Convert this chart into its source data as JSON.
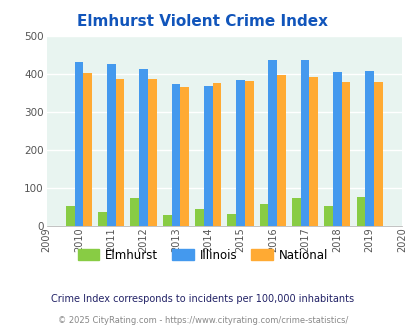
{
  "title": "Elmhurst Violent Crime Index",
  "years": [
    2010,
    2011,
    2012,
    2013,
    2014,
    2015,
    2016,
    2017,
    2018,
    2019
  ],
  "elmhurst": [
    52,
    37,
    73,
    29,
    46,
    33,
    58,
    75,
    53,
    76
  ],
  "illinois": [
    433,
    428,
    415,
    373,
    370,
    384,
    438,
    438,
    405,
    408
  ],
  "national": [
    404,
    387,
    387,
    367,
    376,
    383,
    397,
    394,
    380,
    379
  ],
  "bar_colors": {
    "elmhurst": "#88cc44",
    "illinois": "#4499ee",
    "national": "#ffaa33"
  },
  "plot_bg": "#e8f4f0",
  "xlim_min": 2009,
  "xlim_max": 2020,
  "ylim": [
    0,
    500
  ],
  "yticks": [
    0,
    100,
    200,
    300,
    400,
    500
  ],
  "title_color": "#1155bb",
  "title_fontsize": 11,
  "footer_text": "Crime Index corresponds to incidents per 100,000 inhabitants",
  "copyright_text": "© 2025 CityRating.com - https://www.cityrating.com/crime-statistics/",
  "legend_labels": [
    "Elmhurst",
    "Illinois",
    "National"
  ],
  "bar_width": 0.27
}
